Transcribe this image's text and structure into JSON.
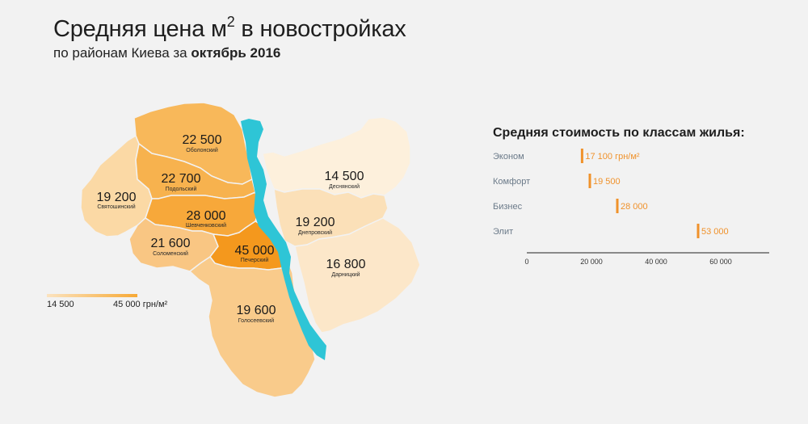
{
  "header": {
    "title_main": "Средняя цена м",
    "title_sup": "2",
    "title_rest": " в новостройках",
    "subtitle_prefix": "по районам Киева за ",
    "subtitle_period": "октябрь 2016"
  },
  "map": {
    "river_color": "#2ec5d6",
    "color_min": "#fbe3bf",
    "color_max": "#f7a935",
    "districts": [
      {
        "id": "obolonsky",
        "name": "Оболонский",
        "price_label": "22 500",
        "price": 22500,
        "color": "#f8b85a"
      },
      {
        "id": "podolsky",
        "name": "Подольский",
        "price_label": "22 700",
        "price": 22700,
        "color": "#f7b24e"
      },
      {
        "id": "svyatoshinsky",
        "name": "Святошинский",
        "price_label": "19 200",
        "price": 19200,
        "color": "#fbd9a5"
      },
      {
        "id": "shevchenkovsky",
        "name": "Шевченковский",
        "price_label": "28 000",
        "price": 28000,
        "color": "#f7a83a"
      },
      {
        "id": "solomensky",
        "name": "Соломенский",
        "price_label": "21 600",
        "price": 21600,
        "color": "#f9c683"
      },
      {
        "id": "pechersky",
        "name": "Печерский",
        "price_label": "45 000",
        "price": 45000,
        "color": "#f4981d"
      },
      {
        "id": "goloseevsky",
        "name": "Голосеевский",
        "price_label": "19 600",
        "price": 19600,
        "color": "#f9cb8b"
      },
      {
        "id": "desnyansky",
        "name": "Деснянский",
        "price_label": "14 500",
        "price": 14500,
        "color": "#fdf0dc"
      },
      {
        "id": "dneprovsky",
        "name": "Днепровский",
        "price_label": "19 200",
        "price": 19200,
        "color": "#fbe0b8"
      },
      {
        "id": "darnitsky",
        "name": "Дарницкий",
        "price_label": "16 800",
        "price": 16800,
        "color": "#fce7c9"
      }
    ]
  },
  "legend": {
    "min_label": "14 500",
    "max_label": "45 000 грн/м²"
  },
  "classes_chart": {
    "title": "Средняя стоимость по классам жилья:",
    "bar_color": "#f0922b"
  },
  "chart_data": {
    "type": "bar",
    "orientation": "horizontal",
    "title": "Средняя стоимость по классам жилья:",
    "categories": [
      "Эконом",
      "Комфорт",
      "Бизнес",
      "Элит"
    ],
    "values": [
      17100,
      19500,
      28000,
      53000
    ],
    "value_labels": [
      "17 100 грн/м²",
      "19 500",
      "28 000",
      "53 000"
    ],
    "xlim": [
      0,
      75000
    ],
    "xticks": [
      0,
      20000,
      40000,
      60000
    ],
    "xtick_labels": [
      "0",
      "20 000",
      "40 000",
      "60 000"
    ],
    "grid": false
  }
}
